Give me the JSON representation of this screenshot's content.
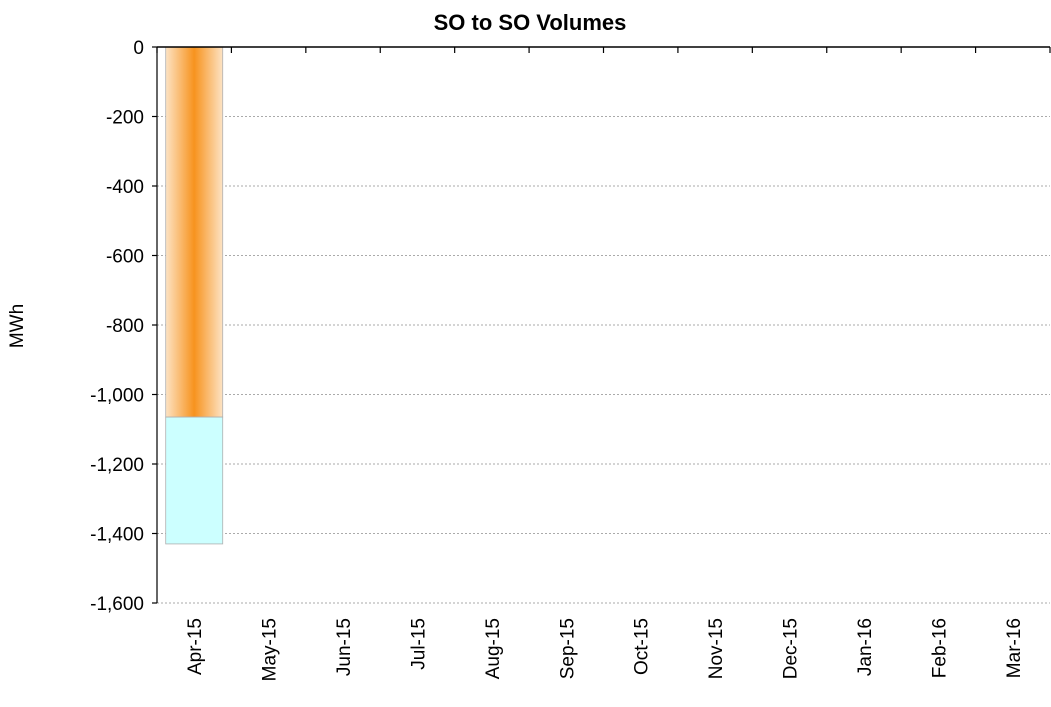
{
  "chart_data": {
    "type": "bar",
    "title": "SO to SO Volumes",
    "xlabel": "",
    "ylabel": "MWh",
    "categories": [
      "Apr-15",
      "May-15",
      "Jun-15",
      "Jul-15",
      "Aug-15",
      "Sep-15",
      "Oct-15",
      "Nov-15",
      "Dec-15",
      "Jan-16",
      "Feb-16",
      "Mar-16"
    ],
    "stacked": true,
    "series": [
      {
        "values": [
          -1065,
          0,
          0,
          0,
          0,
          0,
          0,
          0,
          0,
          0,
          0,
          0
        ],
        "color": "#f7931e"
      },
      {
        "values": [
          -365,
          0,
          0,
          0,
          0,
          0,
          0,
          0,
          0,
          0,
          0,
          0
        ],
        "color": "#ccffff"
      }
    ],
    "ylim": [
      -1600,
      0
    ],
    "yticks": [
      0,
      -200,
      -400,
      -600,
      -800,
      -1000,
      -1200,
      -1400,
      -1600
    ],
    "ytick_labels": [
      "0",
      "-200",
      "-400",
      "-600",
      "-800",
      "-1,000",
      "-1,200",
      "-1,400",
      "-1,600"
    ],
    "grid": true,
    "legend": "none"
  }
}
